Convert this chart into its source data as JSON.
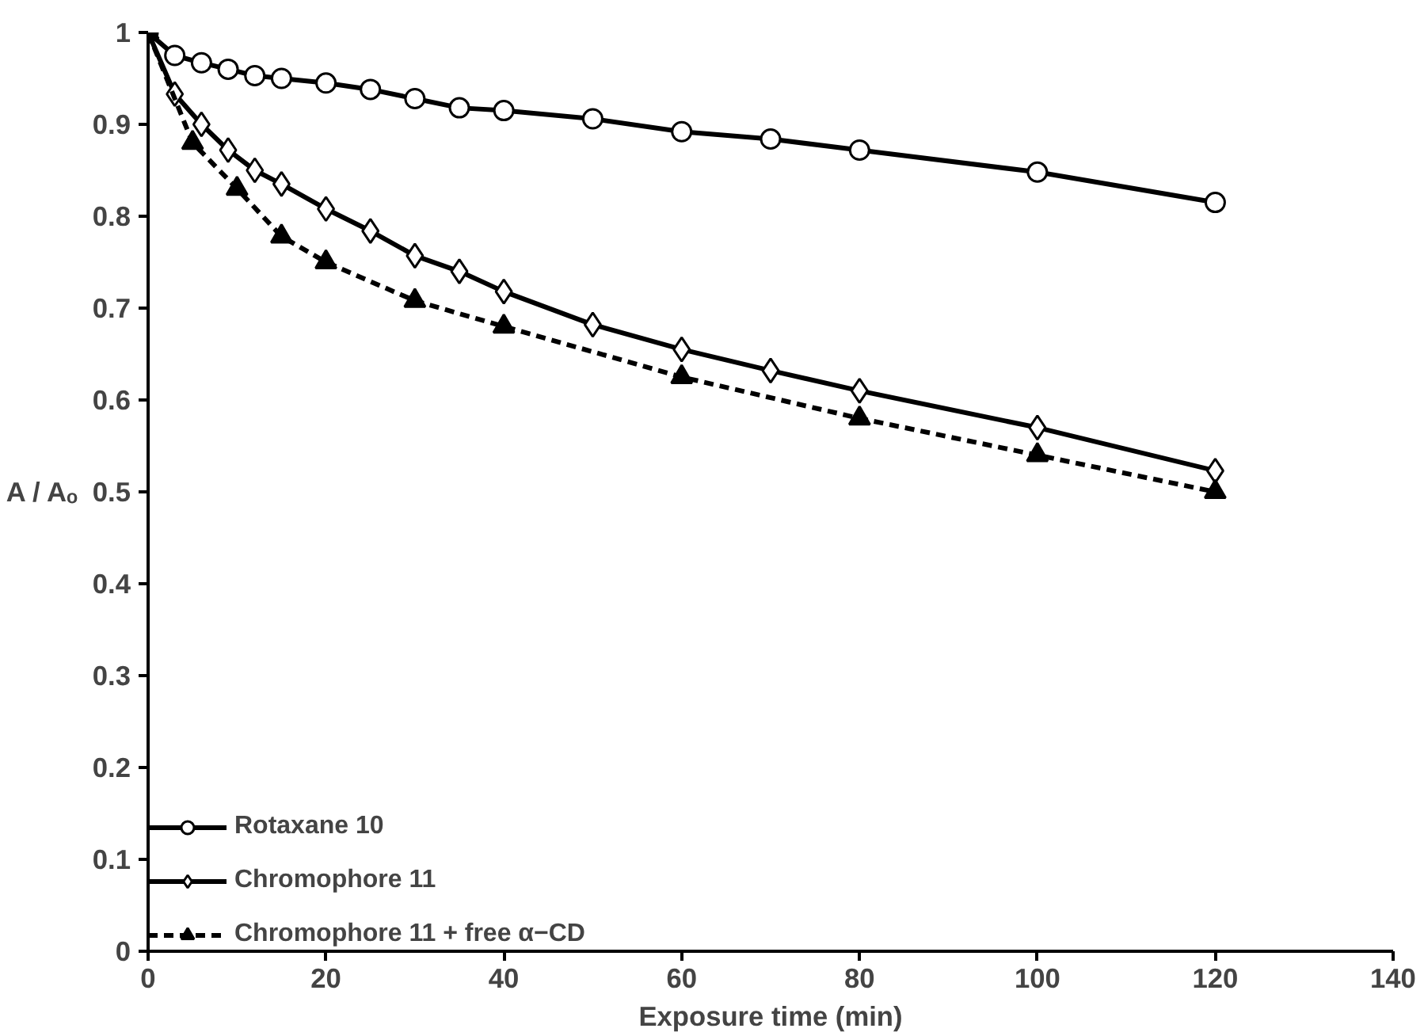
{
  "chart_data": {
    "type": "line",
    "xlabel": "Exposure time (min)",
    "ylabel": "A / Aₒ",
    "xlim": [
      0,
      140
    ],
    "xticks": [
      0,
      20,
      40,
      60,
      80,
      100,
      120,
      140
    ],
    "ylim": [
      0,
      1
    ],
    "yticks": [
      0,
      0.1,
      0.2,
      0.3,
      0.4,
      0.5,
      0.6,
      0.7,
      0.8,
      0.9,
      1
    ],
    "grid": false,
    "legend": "bottom left",
    "series": [
      {
        "name": "Rotaxane 10",
        "color": "#000000",
        "marker": "circle",
        "line_style": "solid",
        "x": [
          0,
          3,
          6,
          9,
          12,
          15,
          20,
          25,
          30,
          35,
          40,
          50,
          60,
          70,
          80,
          100,
          120
        ],
        "values": [
          1.0,
          0.975,
          0.967,
          0.96,
          0.953,
          0.95,
          0.945,
          0.938,
          0.928,
          0.918,
          0.915,
          0.906,
          0.892,
          0.884,
          0.872,
          0.848,
          0.815
        ]
      },
      {
        "name": "Chromophore 11",
        "color": "#000000",
        "marker": "diamond",
        "line_style": "solid",
        "x": [
          0,
          3,
          6,
          9,
          12,
          15,
          20,
          25,
          30,
          35,
          40,
          50,
          60,
          70,
          80,
          100,
          120
        ],
        "values": [
          1.0,
          0.933,
          0.9,
          0.872,
          0.85,
          0.835,
          0.808,
          0.784,
          0.757,
          0.74,
          0.718,
          0.682,
          0.655,
          0.632,
          0.61,
          0.57,
          0.523
        ]
      },
      {
        "name": "Chromophore 11 + free α−CD",
        "color": "#000000",
        "marker": "triangle",
        "line_style": "dashed",
        "x": [
          0,
          5,
          10,
          15,
          20,
          30,
          40,
          60,
          80,
          100,
          120
        ],
        "values": [
          1.0,
          0.88,
          0.83,
          0.778,
          0.75,
          0.708,
          0.68,
          0.625,
          0.58,
          0.54,
          0.5
        ]
      }
    ]
  }
}
